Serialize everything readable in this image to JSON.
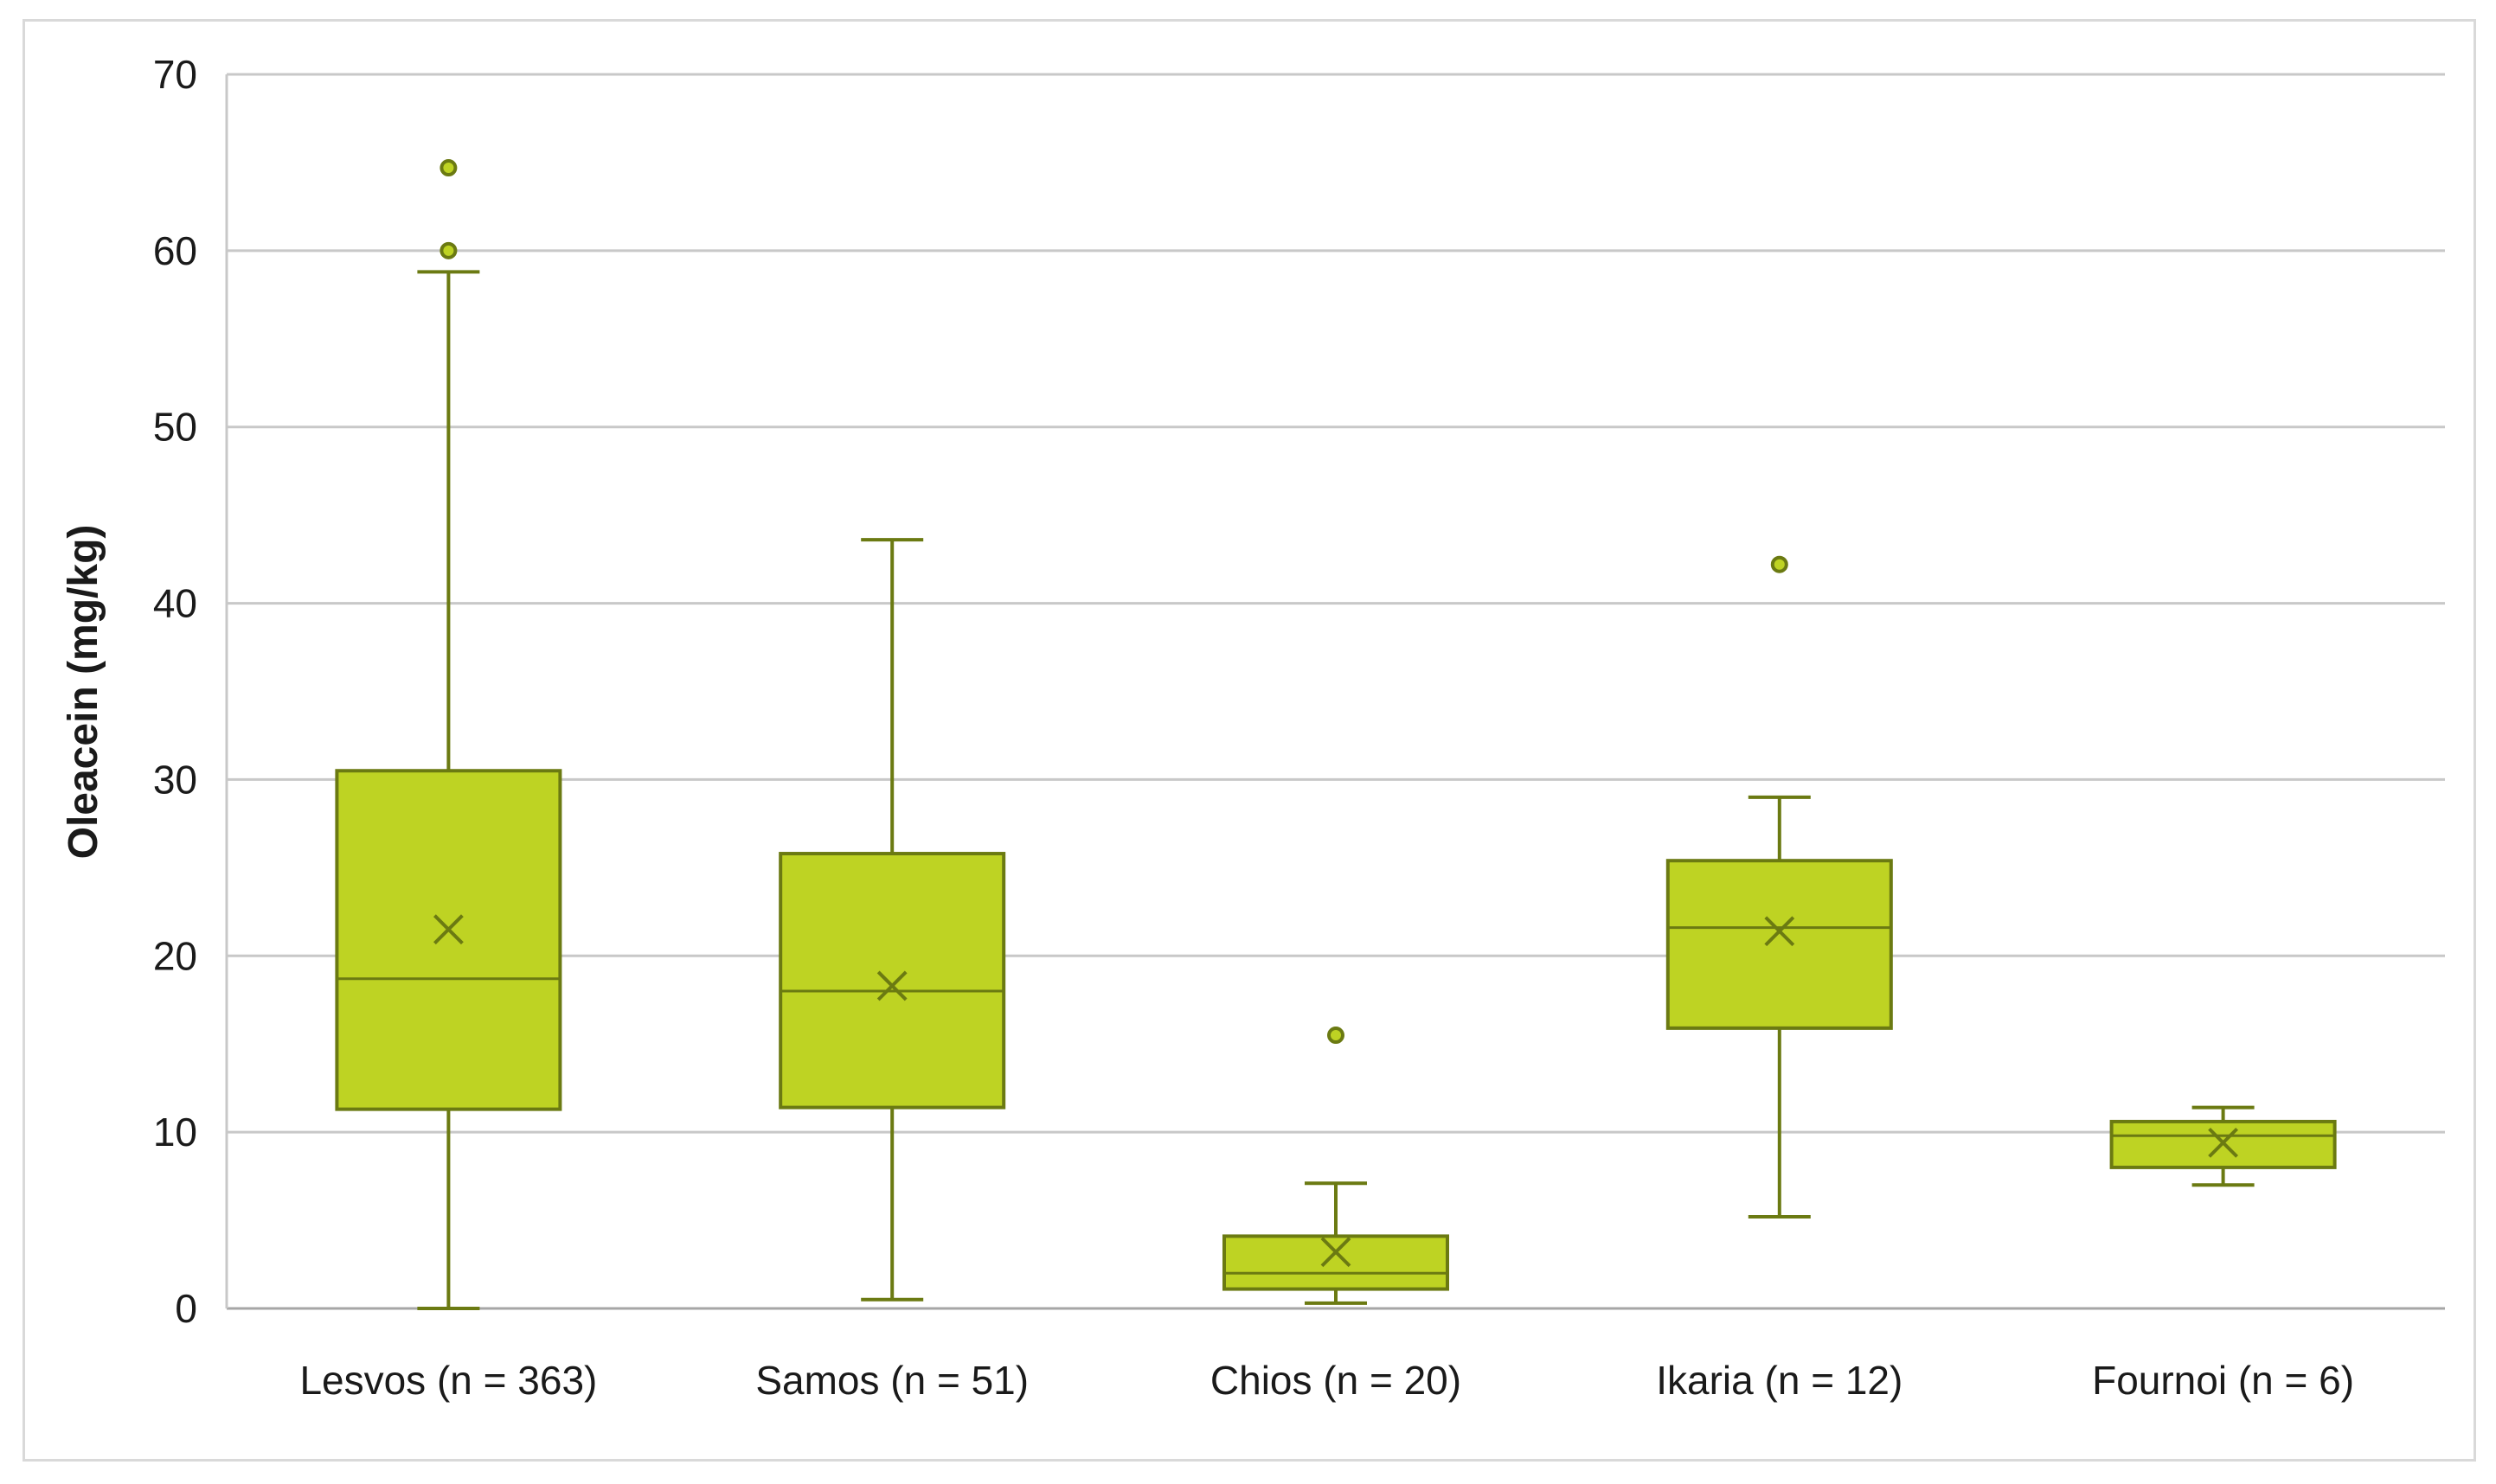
{
  "chart_data": {
    "type": "boxplot",
    "title": "",
    "xlabel": "",
    "ylabel": "Oleacein (mg/kg)",
    "ylim": [
      0,
      70
    ],
    "yticks": [
      0,
      10,
      20,
      30,
      40,
      50,
      60,
      70
    ],
    "grid": true,
    "legend": "none",
    "categories": [
      "Lesvos (n = 363)",
      "Samos (n = 51)",
      "Chios (n = 20)",
      "Ikaria (n = 12)",
      "Fournoi (n = 6)"
    ],
    "boxes": [
      {
        "whisker_low": 0.0,
        "q1": 11.3,
        "median": 18.7,
        "q3": 30.5,
        "whisker_high": 58.8,
        "mean": 21.5,
        "outliers": [
          60.0,
          64.7
        ]
      },
      {
        "whisker_low": 0.5,
        "q1": 11.4,
        "median": 18.0,
        "q3": 25.8,
        "whisker_high": 43.6,
        "mean": 18.3,
        "outliers": []
      },
      {
        "whisker_low": 0.3,
        "q1": 1.1,
        "median": 2.0,
        "q3": 4.1,
        "whisker_high": 7.1,
        "mean": 3.2,
        "outliers": [
          15.5
        ]
      },
      {
        "whisker_low": 5.2,
        "q1": 15.9,
        "median": 21.6,
        "q3": 25.4,
        "whisker_high": 29.0,
        "mean": 21.4,
        "outliers": [
          42.2
        ]
      },
      {
        "whisker_low": 7.0,
        "q1": 8.0,
        "median": 9.8,
        "q3": 10.6,
        "whisker_high": 11.4,
        "mean": 9.4,
        "outliers": []
      }
    ],
    "colors": {
      "fill": "#bed323",
      "stroke": "#6b7a12",
      "grid": "#c8c8c8",
      "axis": "#a6a6a6"
    }
  }
}
